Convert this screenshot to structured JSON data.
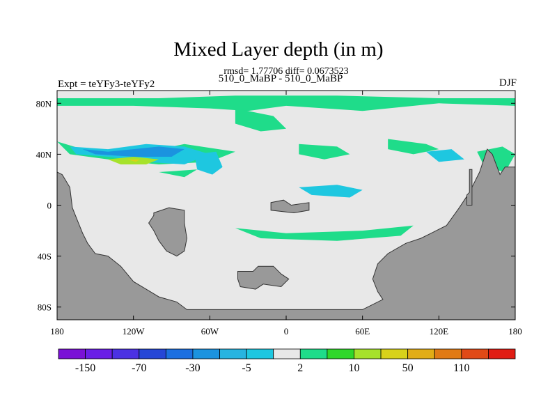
{
  "chart_data": {
    "type": "heatmap",
    "title": "Mixed Layer depth (in m)",
    "stats": "rmsd= 1.77706 diff= 0.0673523",
    "subtitle": "510_0_MaBP - 510_0_MaBP",
    "left_label": "Expt = teYFy3-teYFy2",
    "right_label": "DJF",
    "xlim": [
      -180,
      180
    ],
    "ylim": [
      -90,
      90
    ],
    "x_ticks": [
      {
        "value": -180,
        "label": "180"
      },
      {
        "value": -120,
        "label": "120W"
      },
      {
        "value": -60,
        "label": "60W"
      },
      {
        "value": 0,
        "label": "0"
      },
      {
        "value": 60,
        "label": "60E"
      },
      {
        "value": 120,
        "label": "120E"
      },
      {
        "value": 180,
        "label": "180"
      }
    ],
    "y_ticks": [
      {
        "value": 80,
        "label": "80N"
      },
      {
        "value": 40,
        "label": "40N"
      },
      {
        "value": 0,
        "label": "0"
      },
      {
        "value": -40,
        "label": "40S"
      },
      {
        "value": -80,
        "label": "80S"
      }
    ],
    "colorbar": {
      "colors": [
        "#7a11d6",
        "#6a1fe6",
        "#4b32e3",
        "#2546d6",
        "#1b6fe0",
        "#1b93df",
        "#27b4e0",
        "#1ec7e0",
        "#e8e8e8",
        "#1fdc8a",
        "#2fd72a",
        "#a6e22b",
        "#d8d21a",
        "#e2ad16",
        "#e07a15",
        "#e04a17",
        "#e01d14"
      ],
      "labels": [
        {
          "index": 1,
          "text": "-150"
        },
        {
          "index": 3,
          "text": "-70"
        },
        {
          "index": 5,
          "text": "-30"
        },
        {
          "index": 7,
          "text": "-5"
        },
        {
          "index": 9,
          "text": "2"
        },
        {
          "index": 11,
          "text": "10"
        },
        {
          "index": 13,
          "text": "50"
        },
        {
          "index": 15,
          "text": "110"
        }
      ]
    },
    "background_value_color": "#e8e8e8",
    "land_color": "#999999",
    "land_masses": [
      {
        "name": "west-continent",
        "points": [
          [
            -180,
            26
          ],
          [
            -176,
            24
          ],
          [
            -170,
            14
          ],
          [
            -168,
            -2
          ],
          [
            -164,
            -12
          ],
          [
            -160,
            -22
          ],
          [
            -156,
            -30
          ],
          [
            -150,
            -38
          ],
          [
            -140,
            -40
          ],
          [
            -130,
            -48
          ],
          [
            -120,
            -60
          ],
          [
            -110,
            -66
          ],
          [
            -100,
            -72
          ],
          [
            -86,
            -76
          ],
          [
            -78,
            -82
          ],
          [
            60,
            -82
          ],
          [
            76,
            -74
          ],
          [
            72,
            -68
          ],
          [
            68,
            -58
          ],
          [
            72,
            -46
          ],
          [
            80,
            -38
          ],
          [
            94,
            -30
          ],
          [
            106,
            -26
          ],
          [
            114,
            -22
          ],
          [
            126,
            -16
          ],
          [
            136,
            -2
          ],
          [
            144,
            10
          ],
          [
            152,
            26
          ],
          [
            158,
            44
          ],
          [
            162,
            40
          ],
          [
            168,
            24
          ],
          [
            172,
            30
          ],
          [
            180,
            30
          ],
          [
            180,
            -90
          ],
          [
            -180,
            -90
          ]
        ]
      },
      {
        "name": "south-america-like-block",
        "points": [
          [
            -104,
            -6
          ],
          [
            -92,
            -2
          ],
          [
            -80,
            -4
          ],
          [
            -80,
            -14
          ],
          [
            -78,
            -26
          ],
          [
            -80,
            -36
          ],
          [
            -86,
            -40
          ],
          [
            -94,
            -36
          ],
          [
            -100,
            -28
          ],
          [
            -104,
            -20
          ],
          [
            -108,
            -14
          ],
          [
            -104,
            -8
          ]
        ]
      },
      {
        "name": "south-atlantic-island",
        "points": [
          [
            -38,
            -52
          ],
          [
            -26,
            -52
          ],
          [
            -22,
            -48
          ],
          [
            -10,
            -48
          ],
          [
            -4,
            -54
          ],
          [
            2,
            -58
          ],
          [
            -4,
            -64
          ],
          [
            -18,
            -62
          ],
          [
            -24,
            -66
          ],
          [
            -36,
            -64
          ],
          [
            -38,
            -58
          ]
        ]
      },
      {
        "name": "equatorial-island",
        "points": [
          [
            -12,
            2
          ],
          [
            -2,
            4
          ],
          [
            4,
            0
          ],
          [
            18,
            2
          ],
          [
            18,
            -4
          ],
          [
            6,
            -6
          ],
          [
            -12,
            -4
          ]
        ]
      },
      {
        "name": "pacific-northeast-bar",
        "points": [
          [
            144,
            28
          ],
          [
            146,
            28
          ],
          [
            146,
            0
          ],
          [
            142,
            0
          ],
          [
            142,
            8
          ],
          [
            144,
            10
          ]
        ]
      }
    ],
    "anomaly_patches": [
      {
        "color": "#1fdc8a",
        "points": [
          [
            -180,
            84
          ],
          [
            -100,
            84
          ],
          [
            -40,
            86
          ],
          [
            40,
            86
          ],
          [
            120,
            84
          ],
          [
            180,
            84
          ],
          [
            180,
            78
          ],
          [
            120,
            80
          ],
          [
            60,
            74
          ],
          [
            0,
            78
          ],
          [
            -30,
            74
          ],
          [
            -60,
            76
          ],
          [
            -120,
            78
          ],
          [
            -180,
            78
          ]
        ]
      },
      {
        "color": "#1fdc8a",
        "points": [
          [
            -40,
            76
          ],
          [
            -10,
            70
          ],
          [
            0,
            60
          ],
          [
            -20,
            58
          ],
          [
            -40,
            64
          ]
        ]
      },
      {
        "color": "#1fdc8a",
        "points": [
          [
            -180,
            50
          ],
          [
            -160,
            44
          ],
          [
            -120,
            40
          ],
          [
            -80,
            48
          ],
          [
            -40,
            42
          ],
          [
            -60,
            34
          ],
          [
            -100,
            32
          ],
          [
            -140,
            36
          ],
          [
            -170,
            40
          ]
        ]
      },
      {
        "color": "#1fdc8a",
        "points": [
          [
            10,
            48
          ],
          [
            40,
            46
          ],
          [
            50,
            40
          ],
          [
            30,
            36
          ],
          [
            10,
            40
          ]
        ]
      },
      {
        "color": "#1fdc8a",
        "points": [
          [
            80,
            52
          ],
          [
            110,
            48
          ],
          [
            120,
            44
          ],
          [
            100,
            40
          ],
          [
            80,
            44
          ]
        ]
      },
      {
        "color": "#1fdc8a",
        "points": [
          [
            -40,
            -18
          ],
          [
            0,
            -22
          ],
          [
            60,
            -20
          ],
          [
            100,
            -16
          ],
          [
            90,
            -24
          ],
          [
            40,
            -28
          ],
          [
            -20,
            -26
          ]
        ]
      },
      {
        "color": "#1fdc8a",
        "points": [
          [
            -100,
            26
          ],
          [
            -80,
            22
          ],
          [
            -70,
            28
          ]
        ]
      },
      {
        "color": "#1fdc8a",
        "points": [
          [
            150,
            42
          ],
          [
            170,
            46
          ],
          [
            180,
            40
          ],
          [
            172,
            26
          ],
          [
            156,
            30
          ]
        ]
      },
      {
        "color": "#1ec7e0",
        "points": [
          [
            -170,
            46
          ],
          [
            -140,
            44
          ],
          [
            -110,
            48
          ],
          [
            -80,
            46
          ],
          [
            -60,
            40
          ],
          [
            -80,
            32
          ],
          [
            -110,
            34
          ],
          [
            -140,
            38
          ],
          [
            -165,
            40
          ]
        ]
      },
      {
        "color": "#1ec7e0",
        "points": [
          [
            -72,
            40
          ],
          [
            -55,
            42
          ],
          [
            -50,
            30
          ],
          [
            -58,
            24
          ],
          [
            -70,
            28
          ]
        ]
      },
      {
        "color": "#1ec7e0",
        "points": [
          [
            10,
            14
          ],
          [
            40,
            16
          ],
          [
            60,
            12
          ],
          [
            50,
            6
          ],
          [
            20,
            8
          ]
        ]
      },
      {
        "color": "#1ec7e0",
        "points": [
          [
            110,
            42
          ],
          [
            130,
            44
          ],
          [
            140,
            36
          ],
          [
            120,
            34
          ]
        ]
      },
      {
        "color": "#1b93df",
        "points": [
          [
            -160,
            44
          ],
          [
            -140,
            42
          ],
          [
            -120,
            44
          ],
          [
            -100,
            46
          ],
          [
            -80,
            44
          ],
          [
            -90,
            38
          ],
          [
            -120,
            38
          ],
          [
            -150,
            40
          ]
        ]
      },
      {
        "color": "#a6e22b",
        "points": [
          [
            -140,
            36
          ],
          [
            -120,
            38
          ],
          [
            -100,
            36
          ],
          [
            -110,
            32
          ],
          [
            -130,
            32
          ]
        ]
      },
      {
        "color": "#d8d21a",
        "points": [
          [
            -125,
            36
          ],
          [
            -115,
            36
          ],
          [
            -118,
            34
          ]
        ]
      }
    ]
  }
}
